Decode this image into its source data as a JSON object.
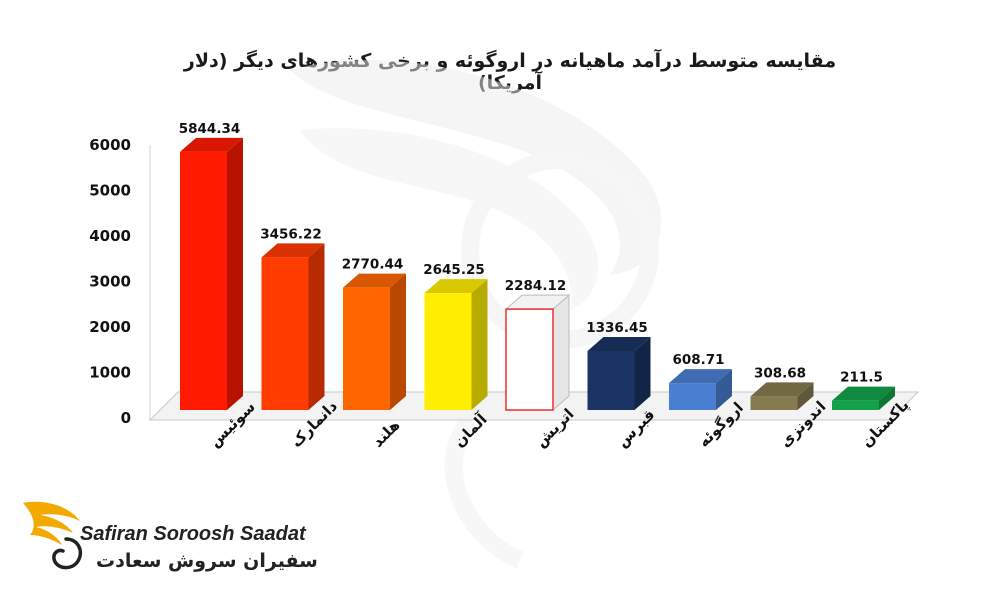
{
  "chart_data": {
    "type": "bar",
    "title": "مقایسه متوسط درآمد ماهیانه در اروگوئه و برخی کشورهای دیگر (دلار آمریکا)",
    "xlabel": "",
    "ylabel": "",
    "ylim": [
      0,
      6000
    ],
    "yticks": [
      "0",
      "1000",
      "2000",
      "3000",
      "4000",
      "5000",
      "6000"
    ],
    "grid": false,
    "legend": "none",
    "categories": [
      "سوئیس",
      "دانمارک",
      "هلند",
      "آلمان",
      "اتریش",
      "قبرس",
      "اروگوئه",
      "اندونزی",
      "پاکستان"
    ],
    "values": [
      5844.34,
      3456.22,
      2770.44,
      2645.25,
      2284.12,
      1336.45,
      608.71,
      308.68,
      211.5
    ],
    "value_labels": [
      "5844.34",
      "3456.22",
      "2770.44",
      "2645.25",
      "2284.12",
      "1336.45",
      "608.71",
      "308.68",
      "211.5"
    ],
    "colors": [
      "#ff1a00",
      "#ff3b00",
      "#ff6600",
      "#ffee00",
      "#ffffff",
      "#1b3463",
      "#4a7ed1",
      "#857a50",
      "#13a24a"
    ],
    "outlined_bar_color": "#e63030"
  },
  "logo": {
    "name_en": "Safiran Soroosh Saadat",
    "name_fa": "سفیران سروش سعادت",
    "accent_color": "#f2a900"
  }
}
